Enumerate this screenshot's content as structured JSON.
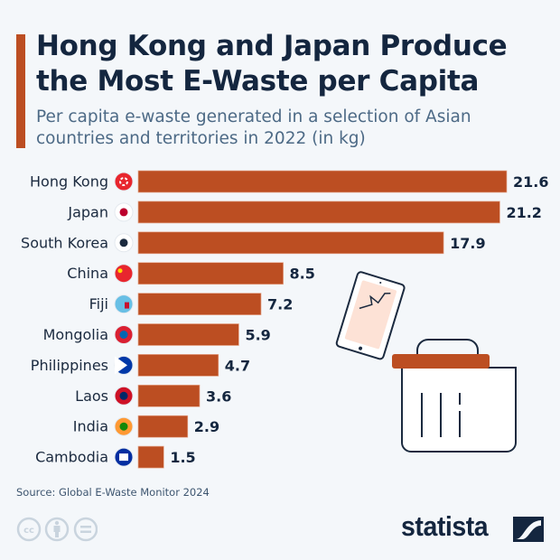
{
  "title": "Hong Kong and Japan Produce the Most E-Waste per Capita",
  "subtitle": "Per capita e-waste generated in a selection of Asian countries and territories in 2022 (in kg)",
  "source": "Source: Global E-Waste Monitor 2024",
  "brand": "statista",
  "colors": {
    "bar": "#bc4e22",
    "text": "#14263f",
    "background": "#f4f7fa"
  },
  "icons": [
    "cracked-tablet-icon",
    "trash-bin-icon",
    "cc-icon",
    "attribution-icon",
    "no-derivatives-icon",
    "statista-logo-icon"
  ],
  "chart_data": {
    "type": "bar",
    "orientation": "horizontal",
    "title": "Hong Kong and Japan Produce the Most E-Waste per Capita",
    "unit": "kg",
    "categories": [
      "Hong Kong",
      "Japan",
      "South Korea",
      "China",
      "Fiji",
      "Mongolia",
      "Philippines",
      "Laos",
      "India",
      "Cambodia"
    ],
    "values": [
      21.6,
      21.2,
      17.9,
      8.5,
      7.2,
      5.9,
      4.7,
      3.6,
      2.9,
      1.5
    ],
    "data_labels": [
      "21.6",
      "21.2",
      "17.9",
      "8.5",
      "7.2",
      "5.9",
      "4.7",
      "3.6",
      "2.9",
      "1.5"
    ],
    "grid": false,
    "legend": "none"
  }
}
